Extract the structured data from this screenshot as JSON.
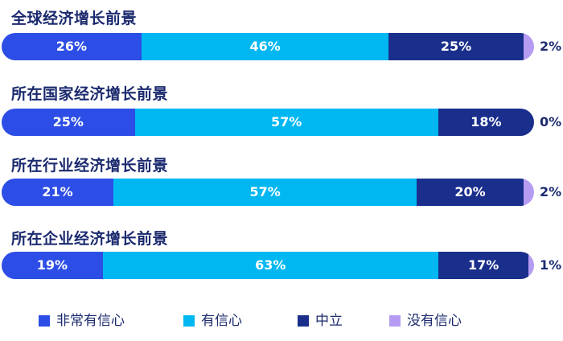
{
  "chart_data": {
    "type": "bar",
    "orientation": "horizontal",
    "stacked": true,
    "percent_axis": true,
    "legend_position": "bottom",
    "grid": false,
    "categories": [
      "全球经济增长前景",
      "所在国家经济增长前景",
      "所在行业经济增长前景",
      "所在企业经济增长前景"
    ],
    "series": [
      {
        "name": "非常有信心",
        "color": "#2d4ee6",
        "values": [
          26,
          25,
          21,
          19
        ],
        "labels": [
          "26%",
          "25%",
          "21%",
          "19%"
        ]
      },
      {
        "name": "有信心",
        "color": "#00b7f1",
        "values": [
          46,
          57,
          57,
          63
        ],
        "labels": [
          "46%",
          "57%",
          "57%",
          "63%"
        ]
      },
      {
        "name": "中立",
        "color": "#1a2f8c",
        "values": [
          25,
          18,
          20,
          17
        ],
        "labels": [
          "25%",
          "18%",
          "20%",
          "17%"
        ]
      },
      {
        "name": "没有信心",
        "color": "#b59cf2",
        "values": [
          2,
          0,
          2,
          1
        ],
        "labels": [
          "2%",
          "0%",
          "2%",
          "1%"
        ]
      }
    ]
  }
}
